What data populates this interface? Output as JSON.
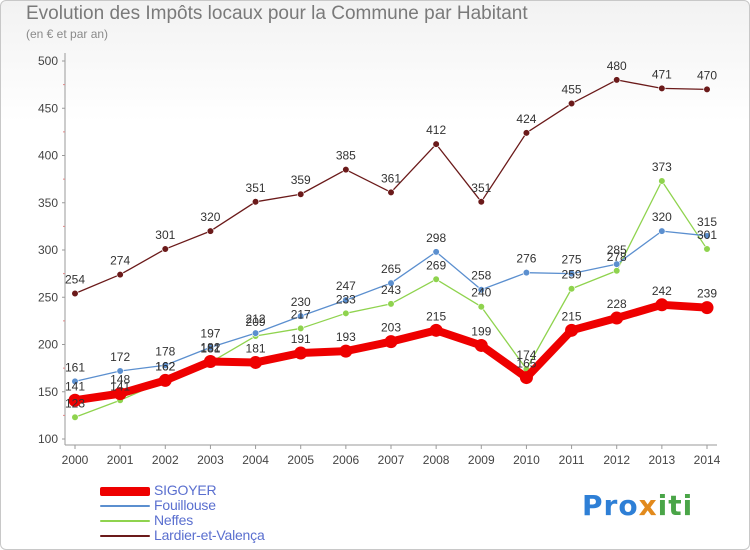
{
  "header": {
    "title": "Evolution des Impôts locaux pour la Commune par Habitant",
    "subtitle": "(en € et par an)"
  },
  "logo": {
    "text": "Proxiti"
  },
  "chart_data": {
    "type": "line",
    "title": "Evolution des Impôts locaux pour la Commune par Habitant",
    "subtitle": "(en € et par an)",
    "xlabel": "",
    "ylabel": "",
    "x": [
      "2000",
      "2001",
      "2002",
      "2003",
      "2004",
      "2005",
      "2006",
      "2007",
      "2008",
      "2009",
      "2010",
      "2011",
      "2012",
      "2013",
      "2014"
    ],
    "ylim": [
      100,
      500
    ],
    "yticks": [
      100,
      150,
      200,
      250,
      300,
      350,
      400,
      450,
      500
    ],
    "grid": false,
    "legend_position": "bottom-left",
    "series": [
      {
        "name": "SIGOYER",
        "color": "#ee0000",
        "emphasis": true,
        "values": [
          141,
          148,
          162,
          182,
          181,
          191,
          193,
          203,
          215,
          199,
          165,
          215,
          228,
          242,
          239
        ]
      },
      {
        "name": "Fouillouse",
        "color": "#5b8fcf",
        "values": [
          161,
          172,
          178,
          197,
          212,
          230,
          247,
          265,
          298,
          258,
          276,
          275,
          285,
          320,
          315
        ]
      },
      {
        "name": "Neffes",
        "color": "#8fd34e",
        "values": [
          123,
          141,
          162,
          181,
          209,
          217,
          233,
          243,
          269,
          240,
          174,
          259,
          278,
          373,
          301
        ]
      },
      {
        "name": "Lardier-et-Valença",
        "color": "#6b1a1a",
        "values": [
          254,
          274,
          301,
          320,
          351,
          359,
          385,
          361,
          412,
          351,
          424,
          455,
          480,
          471,
          470
        ]
      }
    ]
  }
}
